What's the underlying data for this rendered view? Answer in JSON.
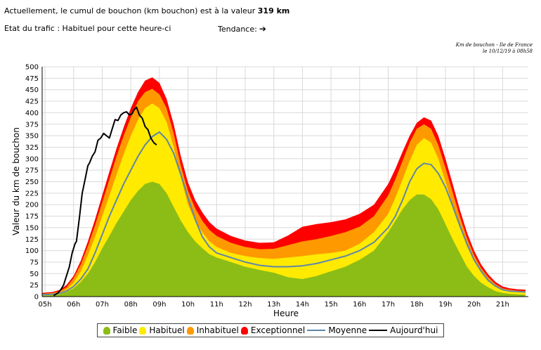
{
  "header": {
    "line1_prefix": "Actuellement, le cumul de bouchon (km bouchon) est à la valeur",
    "line1_value": "319 km",
    "trafic_label": "Etat du trafic : Habituel pour cette heure-ci",
    "tendance_label": "Tendance:",
    "tendance_icon": "arrow-right-icon",
    "note_line1": "Km de bouchon - Ile de France",
    "note_line2": "le 10/12/19 à 08h58"
  },
  "chart_data": {
    "type": "area",
    "xlabel": "Heure",
    "ylabel": "Valeur du  km de bouchon",
    "ylim": [
      0,
      500
    ],
    "yticks": [
      0,
      25,
      50,
      75,
      100,
      125,
      150,
      175,
      200,
      225,
      250,
      275,
      300,
      325,
      350,
      375,
      400,
      425,
      450,
      475,
      500
    ],
    "xlim": [
      4.9,
      21.9
    ],
    "xticks": [
      5,
      6,
      7,
      8,
      9,
      10,
      11,
      12,
      13,
      14,
      15,
      16,
      17,
      18,
      19,
      20,
      21
    ],
    "xtick_labels": [
      "05h",
      "06h",
      "07h",
      "08h",
      "09h",
      "10h",
      "11h",
      "12h",
      "13h",
      "14h",
      "15h",
      "16h",
      "17h",
      "18h",
      "19h",
      "20h",
      "21h"
    ],
    "grid": true,
    "colors": {
      "faible": "#8cbd16",
      "habituel": "#ffea00",
      "inhabituel": "#ff9900",
      "exceptionnel": "#ff0000",
      "moyenne": "#5f86a8",
      "aujourdhui": "#000000"
    },
    "x": [
      4.9,
      5.25,
      5.5,
      5.75,
      6,
      6.25,
      6.5,
      6.75,
      7,
      7.25,
      7.5,
      7.75,
      8,
      8.25,
      8.5,
      8.75,
      9,
      9.25,
      9.5,
      9.75,
      10,
      10.25,
      10.5,
      10.75,
      11,
      11.5,
      12,
      12.5,
      13,
      13.5,
      14,
      14.5,
      15,
      15.5,
      16,
      16.5,
      17,
      17.25,
      17.5,
      17.75,
      18,
      18.25,
      18.5,
      18.75,
      19,
      19.25,
      19.5,
      19.75,
      20,
      20.25,
      20.5,
      20.75,
      21,
      21.25,
      21.5,
      21.8
    ],
    "series": [
      {
        "name": "Faible",
        "kind": "area",
        "values": [
          2,
          3,
          5,
          10,
          18,
          32,
          50,
          75,
          105,
          132,
          160,
          185,
          210,
          230,
          245,
          250,
          245,
          225,
          195,
          165,
          140,
          120,
          105,
          92,
          85,
          75,
          65,
          58,
          52,
          42,
          38,
          45,
          55,
          65,
          80,
          100,
          140,
          165,
          190,
          210,
          222,
          222,
          212,
          190,
          158,
          125,
          95,
          65,
          45,
          30,
          20,
          12,
          8,
          6,
          5,
          4
        ]
      },
      {
        "name": "Habituel",
        "kind": "area",
        "values": [
          5,
          6,
          8,
          15,
          30,
          55,
          90,
          130,
          175,
          220,
          265,
          310,
          350,
          385,
          410,
          420,
          410,
          380,
          325,
          260,
          200,
          165,
          140,
          120,
          108,
          95,
          88,
          84,
          82,
          85,
          88,
          92,
          95,
          100,
          115,
          140,
          180,
          215,
          255,
          295,
          330,
          345,
          335,
          300,
          250,
          200,
          155,
          110,
          80,
          55,
          35,
          22,
          15,
          12,
          10,
          9
        ]
      },
      {
        "name": "Inhabituel",
        "kind": "area",
        "values": [
          6,
          8,
          11,
          20,
          40,
          70,
          110,
          155,
          205,
          255,
          305,
          350,
          390,
          425,
          445,
          452,
          440,
          410,
          355,
          285,
          230,
          192,
          165,
          145,
          132,
          117,
          108,
          103,
          104,
          112,
          120,
          125,
          132,
          140,
          152,
          175,
          220,
          255,
          295,
          335,
          365,
          375,
          365,
          330,
          280,
          228,
          175,
          128,
          90,
          62,
          42,
          27,
          18,
          15,
          13,
          12
        ]
      },
      {
        "name": "Exceptionnel",
        "kind": "area",
        "values": [
          8,
          10,
          14,
          25,
          45,
          78,
          120,
          168,
          220,
          272,
          322,
          368,
          410,
          445,
          470,
          477,
          465,
          430,
          375,
          305,
          248,
          210,
          183,
          162,
          148,
          132,
          122,
          117,
          118,
          133,
          152,
          158,
          162,
          168,
          180,
          200,
          245,
          278,
          315,
          350,
          378,
          390,
          383,
          350,
          300,
          246,
          190,
          140,
          100,
          70,
          48,
          32,
          22,
          18,
          16,
          15
        ]
      },
      {
        "name": "Moyenne",
        "kind": "line",
        "values": [
          4,
          5,
          7,
          12,
          22,
          38,
          60,
          95,
          135,
          175,
          210,
          245,
          275,
          305,
          330,
          348,
          358,
          342,
          312,
          265,
          215,
          168,
          130,
          108,
          95,
          85,
          75,
          68,
          65,
          65,
          67,
          72,
          80,
          88,
          100,
          118,
          150,
          175,
          210,
          250,
          278,
          290,
          287,
          268,
          238,
          198,
          155,
          115,
          80,
          55,
          35,
          23,
          15,
          12,
          11,
          10
        ]
      },
      {
        "name": "Aujourd'hui",
        "kind": "line",
        "x": [
          5.3,
          5.45,
          5.55,
          5.65,
          5.75,
          5.85,
          5.95,
          6.05,
          6.1,
          6.2,
          6.3,
          6.4,
          6.5,
          6.55,
          6.65,
          6.75,
          6.85,
          6.95,
          7.05,
          7.15,
          7.25,
          7.35,
          7.45,
          7.55,
          7.65,
          7.75,
          7.85,
          7.95,
          8.05,
          8.1,
          8.2,
          8.3,
          8.4,
          8.5,
          8.6,
          8.7,
          8.8,
          8.9
        ],
        "values": [
          2,
          8,
          15,
          25,
          45,
          65,
          95,
          115,
          120,
          170,
          225,
          255,
          285,
          290,
          305,
          315,
          340,
          345,
          355,
          350,
          345,
          365,
          385,
          383,
          395,
          400,
          402,
          395,
          398,
          405,
          412,
          395,
          388,
          370,
          363,
          345,
          335,
          330
        ]
      }
    ]
  }
}
